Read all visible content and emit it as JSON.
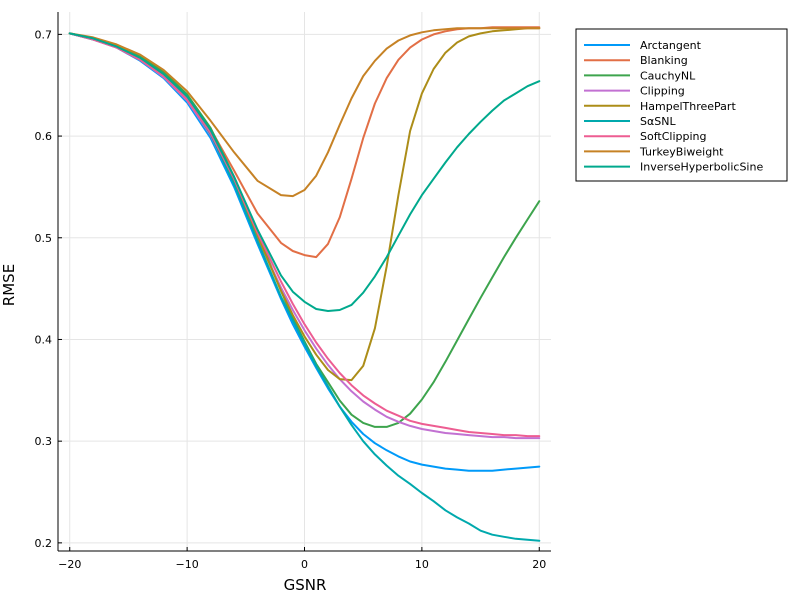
{
  "chart_data": {
    "type": "line",
    "title": "",
    "xlabel": "GSNR",
    "ylabel": "RMSE",
    "xlim": [
      -21,
      21
    ],
    "ylim": [
      0.192,
      0.722
    ],
    "xticks": [
      -20,
      -10,
      0,
      10,
      20
    ],
    "xtick_labels": [
      "−20",
      "−10",
      "0",
      "10",
      "20"
    ],
    "yticks": [
      0.2,
      0.3,
      0.4,
      0.5,
      0.6,
      0.7
    ],
    "ytick_labels": [
      "0.2",
      "0.3",
      "0.4",
      "0.5",
      "0.6",
      "0.7"
    ],
    "grid": true,
    "legend_position": "top-right-outside",
    "x": [
      -20,
      -18,
      -16,
      -14,
      -12,
      -10,
      -8,
      -6,
      -4,
      -2,
      -1,
      0,
      1,
      2,
      3,
      4,
      5,
      6,
      7,
      8,
      9,
      10,
      11,
      12,
      13,
      14,
      15,
      16,
      17,
      18,
      19,
      20
    ],
    "series": [
      {
        "name": "Arctangent",
        "color": "#009af9",
        "values": [
          0.701,
          0.695,
          0.687,
          0.674,
          0.657,
          0.633,
          0.598,
          0.55,
          0.494,
          0.44,
          0.415,
          0.393,
          0.372,
          0.352,
          0.334,
          0.319,
          0.307,
          0.298,
          0.291,
          0.285,
          0.28,
          0.277,
          0.275,
          0.273,
          0.272,
          0.271,
          0.271,
          0.271,
          0.272,
          0.273,
          0.274,
          0.275
        ]
      },
      {
        "name": "Blanking",
        "color": "#e26f46",
        "values": [
          0.701,
          0.696,
          0.688,
          0.677,
          0.661,
          0.638,
          0.607,
          0.566,
          0.524,
          0.495,
          0.487,
          0.483,
          0.481,
          0.494,
          0.52,
          0.558,
          0.598,
          0.632,
          0.657,
          0.675,
          0.687,
          0.695,
          0.7,
          0.703,
          0.705,
          0.706,
          0.706,
          0.707,
          0.707,
          0.707,
          0.707,
          0.707
        ]
      },
      {
        "name": "CauchyNL",
        "color": "#3da44d",
        "values": [
          0.701,
          0.696,
          0.689,
          0.678,
          0.663,
          0.641,
          0.608,
          0.56,
          0.505,
          0.448,
          0.421,
          0.398,
          0.376,
          0.358,
          0.34,
          0.326,
          0.318,
          0.314,
          0.314,
          0.318,
          0.327,
          0.341,
          0.358,
          0.378,
          0.399,
          0.42,
          0.441,
          0.461,
          0.481,
          0.5,
          0.518,
          0.536
        ]
      },
      {
        "name": "Clipping",
        "color": "#c271d2",
        "values": [
          0.701,
          0.695,
          0.687,
          0.675,
          0.658,
          0.635,
          0.601,
          0.554,
          0.5,
          0.451,
          0.429,
          0.409,
          0.391,
          0.375,
          0.361,
          0.349,
          0.339,
          0.331,
          0.324,
          0.319,
          0.315,
          0.312,
          0.31,
          0.308,
          0.307,
          0.306,
          0.305,
          0.304,
          0.304,
          0.303,
          0.303,
          0.303
        ]
      },
      {
        "name": "HampelThreePart",
        "color": "#ac8d18",
        "values": [
          0.701,
          0.696,
          0.689,
          0.677,
          0.661,
          0.638,
          0.604,
          0.556,
          0.502,
          0.448,
          0.424,
          0.403,
          0.385,
          0.37,
          0.361,
          0.36,
          0.374,
          0.411,
          0.472,
          0.542,
          0.605,
          0.642,
          0.666,
          0.682,
          0.692,
          0.698,
          0.701,
          0.703,
          0.704,
          0.705,
          0.706,
          0.706
        ]
      },
      {
        "name": "SαSNL",
        "color": "#00a9ad",
        "values": [
          0.701,
          0.695,
          0.688,
          0.676,
          0.66,
          0.637,
          0.602,
          0.553,
          0.497,
          0.442,
          0.419,
          0.396,
          0.374,
          0.354,
          0.334,
          0.316,
          0.3,
          0.287,
          0.276,
          0.266,
          0.258,
          0.249,
          0.241,
          0.232,
          0.225,
          0.219,
          0.212,
          0.208,
          0.206,
          0.204,
          0.203,
          0.202
        ]
      },
      {
        "name": "SoftClipping",
        "color": "#ed5d92",
        "values": [
          0.701,
          0.695,
          0.687,
          0.675,
          0.659,
          0.636,
          0.603,
          0.558,
          0.505,
          0.457,
          0.435,
          0.415,
          0.397,
          0.381,
          0.367,
          0.355,
          0.345,
          0.337,
          0.33,
          0.325,
          0.32,
          0.317,
          0.315,
          0.313,
          0.311,
          0.309,
          0.308,
          0.307,
          0.306,
          0.306,
          0.305,
          0.305
        ]
      },
      {
        "name": "TurkeyBiweight",
        "color": "#c68225",
        "values": [
          0.701,
          0.697,
          0.69,
          0.68,
          0.665,
          0.644,
          0.615,
          0.584,
          0.556,
          0.542,
          0.541,
          0.547,
          0.561,
          0.584,
          0.611,
          0.637,
          0.659,
          0.674,
          0.686,
          0.694,
          0.699,
          0.702,
          0.704,
          0.705,
          0.706,
          0.706,
          0.706,
          0.706,
          0.706,
          0.706,
          0.706,
          0.706
        ]
      },
      {
        "name": "InverseHyperbolicSine",
        "color": "#00a98d",
        "values": [
          0.701,
          0.696,
          0.688,
          0.677,
          0.661,
          0.639,
          0.606,
          0.56,
          0.508,
          0.463,
          0.447,
          0.437,
          0.43,
          0.428,
          0.429,
          0.434,
          0.446,
          0.462,
          0.481,
          0.502,
          0.523,
          0.542,
          0.558,
          0.574,
          0.589,
          0.602,
          0.614,
          0.625,
          0.635,
          0.642,
          0.649,
          0.654
        ]
      }
    ]
  }
}
